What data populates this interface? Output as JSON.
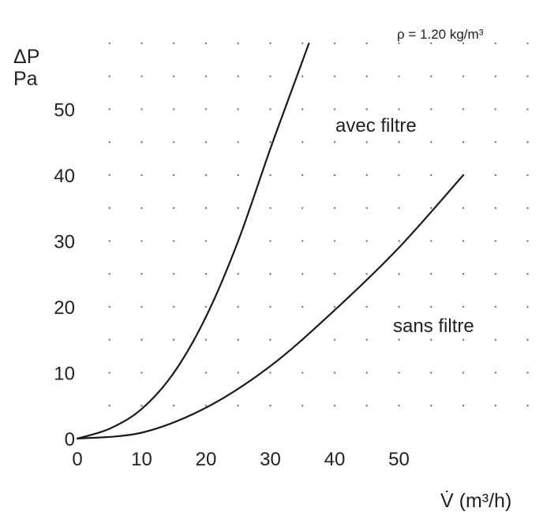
{
  "chart_data": {
    "type": "line",
    "annotation": "ρ = 1.20 kg/m³",
    "ylabel_line1": "ΔP",
    "ylabel_line2": "Pa",
    "xlabel": "V̇  (m³/h)",
    "xlim": [
      0,
      60
    ],
    "ylim": [
      0,
      60
    ],
    "x_ticks": [
      0,
      10,
      20,
      30,
      40,
      50
    ],
    "y_ticks": [
      0,
      10,
      20,
      30,
      40,
      50
    ],
    "grid": "dotted",
    "series": [
      {
        "name": "avec filtre",
        "x": [
          0,
          5,
          10,
          15,
          20,
          25,
          30,
          33,
          36
        ],
        "y": [
          0,
          1.5,
          4.5,
          10,
          18.5,
          30,
          44,
          52,
          60
        ]
      },
      {
        "name": "sans filtre",
        "x": [
          0,
          10,
          20,
          30,
          40,
          50,
          60
        ],
        "y": [
          0,
          0.9,
          4.7,
          11,
          19.5,
          29,
          40
        ]
      }
    ]
  }
}
